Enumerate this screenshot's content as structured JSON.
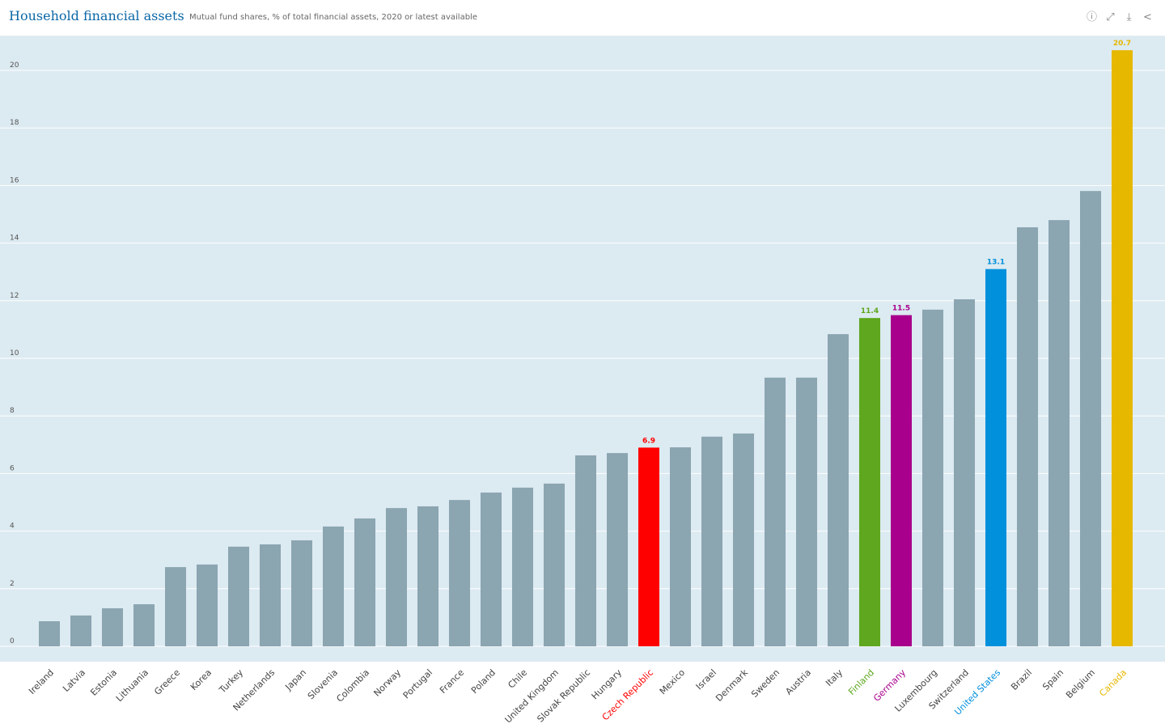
{
  "header": {
    "title": "Household financial assets",
    "subtitle": "Mutual fund shares, % of total financial assets, 2020 or latest available",
    "icons": [
      "info-icon",
      "fullscreen-icon",
      "download-icon",
      "share-icon"
    ]
  },
  "chart_data": {
    "type": "bar",
    "title": "Household financial assets",
    "subtitle": "Mutual fund shares, % of total financial assets, 2020 or latest available",
    "xlabel": "",
    "ylabel": "",
    "ylim": [
      0,
      20
    ],
    "yticks": [
      0,
      2,
      4,
      6,
      8,
      10,
      12,
      14,
      16,
      18,
      20
    ],
    "grid": true,
    "default_color": "#8ba5b1",
    "categories": [
      "Ireland",
      "Latvia",
      "Estonia",
      "Lithuania",
      "Greece",
      "Korea",
      "Turkey",
      "Netherlands",
      "Japan",
      "Slovenia",
      "Colombia",
      "Norway",
      "Portugal",
      "France",
      "Poland",
      "Chile",
      "United Kingdom",
      "Slovak Republic",
      "Hungary",
      "Czech Republic",
      "Mexico",
      "Israel",
      "Denmark",
      "Sweden",
      "Austria",
      "Italy",
      "Finland",
      "Germany",
      "Luxembourg",
      "Switzerland",
      "United States",
      "Brazil",
      "Spain",
      "Belgium",
      "Canada"
    ],
    "values": [
      0.87,
      1.07,
      1.32,
      1.46,
      2.75,
      2.84,
      3.46,
      3.54,
      3.68,
      4.16,
      4.44,
      4.8,
      4.86,
      5.08,
      5.34,
      5.51,
      5.65,
      6.63,
      6.71,
      6.9,
      6.91,
      7.28,
      7.39,
      9.33,
      9.33,
      10.84,
      11.4,
      11.5,
      11.69,
      12.05,
      13.1,
      14.55,
      14.8,
      15.81,
      20.7
    ],
    "highlights": {
      "Czech Republic": {
        "color": "#ff0000",
        "label": "6.9"
      },
      "Finland": {
        "color": "#5ea71e",
        "label": "11.4"
      },
      "Germany": {
        "color": "#a8008c",
        "label": "11.5"
      },
      "United States": {
        "color": "#0090dc",
        "label": "13.1"
      },
      "Canada": {
        "color": "#e6b800",
        "label": "20.7"
      }
    }
  }
}
